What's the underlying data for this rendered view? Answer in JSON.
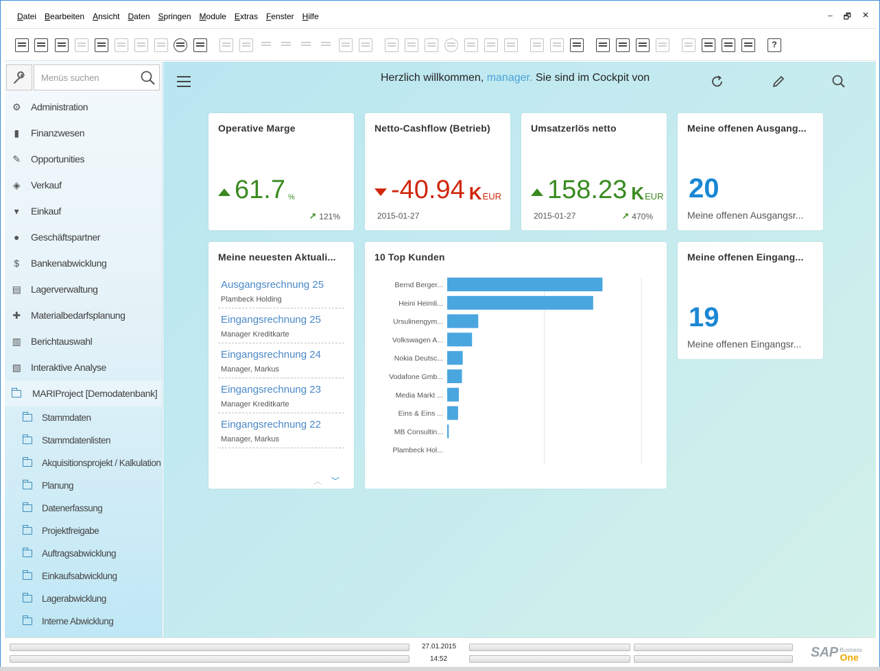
{
  "menu": [
    "Datei",
    "Bearbeiten",
    "Ansicht",
    "Daten",
    "Springen",
    "Module",
    "Extras",
    "Fenster",
    "Hilfe"
  ],
  "window_controls": [
    "–",
    "🗗",
    "✕"
  ],
  "sidebar": {
    "search_placeholder": "Menüs suchen",
    "items": [
      {
        "label": "Administration",
        "icon": "admin-icon"
      },
      {
        "label": "Finanzwesen",
        "icon": "finance-icon"
      },
      {
        "label": "Opportunities",
        "icon": "opportunities-icon"
      },
      {
        "label": "Verkauf",
        "icon": "sales-icon"
      },
      {
        "label": "Einkauf",
        "icon": "cart-icon"
      },
      {
        "label": "Geschäftspartner",
        "icon": "person-icon"
      },
      {
        "label": "Bankenabwicklung",
        "icon": "dollar-icon"
      },
      {
        "label": "Lagerverwaltung",
        "icon": "inventory-icon"
      },
      {
        "label": "Materialbedarfsplanung",
        "icon": "puzzle-icon"
      },
      {
        "label": "Berichtauswahl",
        "icon": "report-icon"
      },
      {
        "label": "Interaktive Analyse",
        "icon": "analysis-icon"
      },
      {
        "label": "MARIProject [Demodatenbank]",
        "icon": "folder-icon"
      }
    ],
    "subitems": [
      "Stammdaten",
      "Stammdatenlisten",
      "Akquisitionsprojekt / Kalkulation",
      "Planung",
      "Datenerfassung",
      "Projektfreigabe",
      "Auftragsabwicklung",
      "Einkaufsabwicklung",
      "Lagerabwicklung",
      "Interne Abwicklung"
    ]
  },
  "cockpit": {
    "welcome_prefix": "Herzlich willkommen, ",
    "user": "manager.",
    "welcome_suffix": " Sie sind im Cockpit von"
  },
  "kpis": {
    "marge": {
      "title": "Operative Marge",
      "value": "61.7",
      "unit": "%",
      "trend": "121%"
    },
    "cashflow": {
      "title": "Netto-Cashflow (Betrieb)",
      "value": "-40.94",
      "unit_k": "K",
      "unit": "EUR",
      "date": "2015-01-27"
    },
    "umsatz": {
      "title": "Umsatzerlös netto",
      "value": "158.23",
      "unit_k": "K",
      "unit": "EUR",
      "date": "2015-01-27",
      "trend": "470%"
    },
    "ausgang": {
      "title": "Meine offenen Ausgang...",
      "count": "20",
      "sub": "Meine offenen Ausgangsr..."
    },
    "eingang": {
      "title": "Meine offenen Eingang...",
      "count": "19",
      "sub": "Meine offenen Eingangsr..."
    }
  },
  "updates": {
    "title": "Meine neuesten Aktuali...",
    "items": [
      {
        "title": "Ausgangsrechnung 25",
        "sub": "Plambeck Holding"
      },
      {
        "title": "Eingangsrechnung 25",
        "sub": "Manager Kreditkarte"
      },
      {
        "title": "Eingangsrechnung 24",
        "sub": "Manager, Markus"
      },
      {
        "title": "Eingangsrechnung 23",
        "sub": "Manager Kreditkarte"
      },
      {
        "title": "Eingangsrechnung 22",
        "sub": "Manager, Markus"
      }
    ]
  },
  "chart_data": {
    "type": "bar",
    "orientation": "horizontal",
    "title": "10 Top Kunden",
    "categories": [
      "Bernd Berger...",
      "Heini Heimli...",
      "Ursulinengym...",
      "Volkswagen A...",
      "Nokia Deutsc...",
      "Vodafone Gmb...",
      "Media Markt ...",
      "Eins & Eins ...",
      "MB Consultin...",
      "Plambeck Hol..."
    ],
    "values": [
      100,
      94,
      20,
      16,
      10,
      9.5,
      7.5,
      7,
      1,
      0
    ],
    "xlim": [
      0,
      125
    ],
    "grid": true,
    "color": "#4aa6df"
  },
  "status": {
    "date": "27.01.2015",
    "time": "14:52"
  },
  "brand": {
    "sap": "SAP",
    "business": "Business",
    "one": "One"
  },
  "colors": {
    "accent": "#1a87d4",
    "positive": "#3a8a20",
    "negative": "#d0280e",
    "link": "#4a88c7"
  }
}
